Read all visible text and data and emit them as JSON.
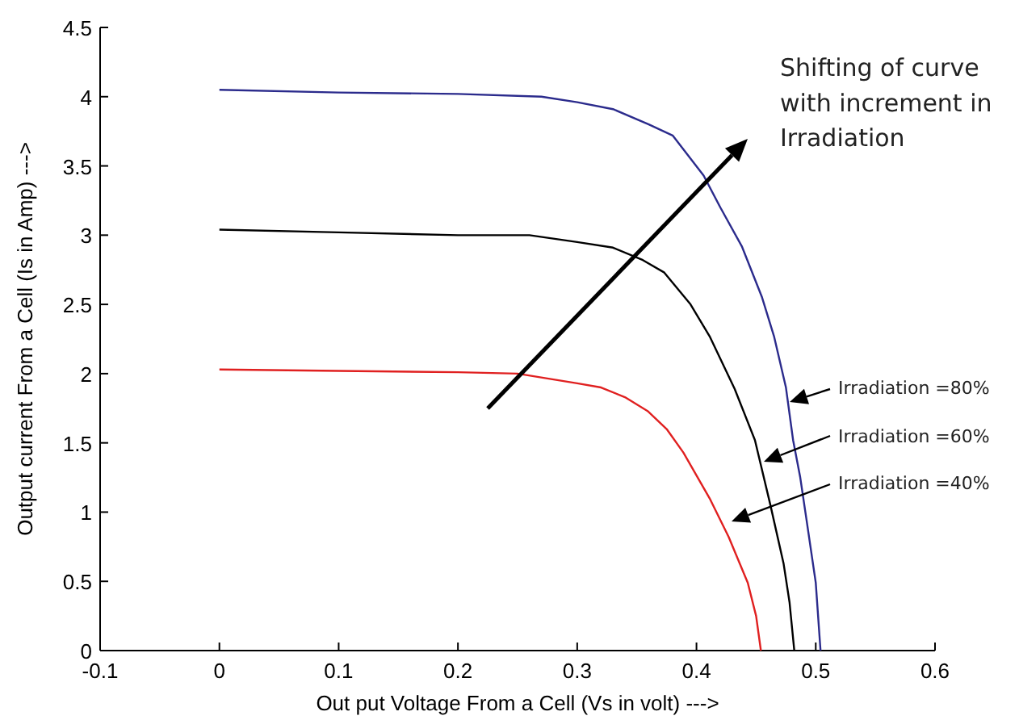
{
  "chart_data": {
    "type": "line",
    "xlabel": "Out put Voltage From a Cell (Vs in volt) --->",
    "ylabel": "Output current From a Cell (Is in Amp) --->",
    "xlim": [
      -0.1,
      0.6
    ],
    "xticks": [
      -0.1,
      0,
      0.1,
      0.2,
      0.3,
      0.4,
      0.5,
      0.6
    ],
    "ylim": [
      0,
      4.5
    ],
    "yticks": [
      0,
      0.5,
      1,
      1.5,
      2,
      2.5,
      3,
      3.5,
      4,
      4.5
    ],
    "grid": false,
    "marker": "none",
    "line_style": "solid",
    "series": [
      {
        "color": "#2b2b8c",
        "x": [
          0,
          0.1,
          0.2,
          0.27,
          0.3,
          0.33,
          0.36,
          0.38,
          0.406,
          0.42,
          0.438,
          0.455,
          0.465,
          0.475,
          0.481,
          0.487,
          0.492,
          0.5,
          0.504
        ],
        "values": [
          4.05,
          4.03,
          4.02,
          4.0,
          3.96,
          3.91,
          3.8,
          3.72,
          3.43,
          3.2,
          2.92,
          2.55,
          2.27,
          1.9,
          1.52,
          1.25,
          0.96,
          0.49,
          0
        ]
      },
      {
        "color": "#000000",
        "x": [
          0,
          0.1,
          0.2,
          0.26,
          0.3,
          0.33,
          0.355,
          0.373,
          0.395,
          0.411,
          0.432,
          0.449,
          0.462,
          0.473,
          0.478,
          0.482
        ],
        "values": [
          3.04,
          3.02,
          3.0,
          3.0,
          2.95,
          2.91,
          2.82,
          2.73,
          2.5,
          2.27,
          1.89,
          1.52,
          1.05,
          0.63,
          0.35,
          0
        ]
      },
      {
        "color": "#e02020",
        "x": [
          0,
          0.1,
          0.2,
          0.25,
          0.3,
          0.32,
          0.34,
          0.359,
          0.375,
          0.389,
          0.411,
          0.427,
          0.443,
          0.45,
          0.454
        ],
        "values": [
          2.03,
          2.02,
          2.01,
          2.0,
          1.93,
          1.9,
          1.83,
          1.73,
          1.6,
          1.43,
          1.1,
          0.82,
          0.49,
          0.25,
          0
        ]
      }
    ],
    "annotations": [
      "Shifting of curve\nwith increment in\nIrradiation",
      "Irradiation =80%",
      "Irradiation =60%",
      "Irradiation =40%"
    ]
  }
}
